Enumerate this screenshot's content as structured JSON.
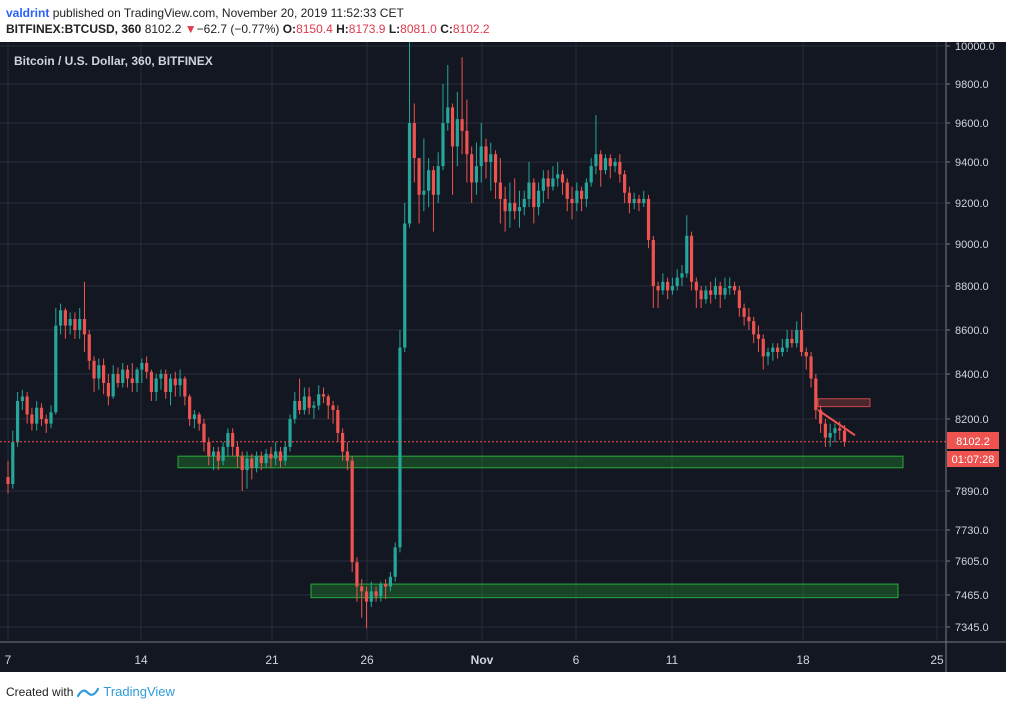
{
  "header": {
    "user": "valdrint",
    "published_text": "published on TradingView.com, November 20, 2019 11:52:33 CET",
    "symbol": "BITFINEX:BTCUSD, 360",
    "last": "8102.2",
    "change_arrow": "▼",
    "change": "−62.7 (−0.77%)",
    "o_label": "O:",
    "o_value": "8150.4",
    "h_label": "H:",
    "h_value": "8173.9",
    "l_label": "L:",
    "l_value": "8081.0",
    "c_label": "C:",
    "c_value": "8102.2"
  },
  "footer": {
    "created_with": "Created with",
    "brand": "TradingView"
  },
  "colors": {
    "background": "#131722",
    "grid": "#2a2e39",
    "up": "#26a69a",
    "down": "#ef5350",
    "zone_fill": "#1e7a2e",
    "zone_stroke": "#2ecc40",
    "price_line": "#ef5350",
    "text": "#d1d4dc"
  },
  "chart_data": {
    "type": "candlestick",
    "title": "Bitcoin / U.S. Dollar, 360, BITFINEX",
    "y_ticks": [
      "10000.0",
      "9800.0",
      "9600.0",
      "9400.0",
      "9200.0",
      "9000.0",
      "8800.0",
      "8600.0",
      "8400.0",
      "8200.0",
      "7890.0",
      "7730.0",
      "7605.0",
      "7465.0",
      "7345.0"
    ],
    "x_ticks": [
      "7",
      "14",
      "21",
      "26",
      "Nov",
      "6",
      "11",
      "18",
      "25"
    ],
    "current_price": "8102.2",
    "countdown": "01:07:28",
    "annotations": [
      {
        "type": "support_zone",
        "low": 7990,
        "high": 8040,
        "from": "Oct 16",
        "to": "Nov 23"
      },
      {
        "type": "support_zone",
        "low": 7455,
        "high": 7510,
        "from": "Oct 23",
        "to": "Nov 23"
      },
      {
        "type": "resistance_zone",
        "low": 8255,
        "high": 8290,
        "from": "Nov 19",
        "to": "Nov 21"
      },
      {
        "type": "trendline",
        "from_price": 8240,
        "to_price": 8130
      }
    ],
    "candles": [
      [
        7950,
        7920,
        8020,
        7880
      ],
      [
        7920,
        8100,
        8150,
        7900
      ],
      [
        8100,
        8280,
        8320,
        8080
      ],
      [
        8280,
        8300,
        8330,
        8240
      ],
      [
        8300,
        8220,
        8320,
        8180
      ],
      [
        8220,
        8180,
        8250,
        8150
      ],
      [
        8180,
        8250,
        8280,
        8150
      ],
      [
        8250,
        8200,
        8270,
        8170
      ],
      [
        8200,
        8180,
        8220,
        8140
      ],
      [
        8180,
        8230,
        8260,
        8160
      ],
      [
        8230,
        8620,
        8700,
        8220
      ],
      [
        8620,
        8690,
        8720,
        8580
      ],
      [
        8690,
        8620,
        8700,
        8560
      ],
      [
        8620,
        8650,
        8680,
        8580
      ],
      [
        8650,
        8600,
        8680,
        8560
      ],
      [
        8600,
        8650,
        8700,
        8560
      ],
      [
        8650,
        8580,
        8820,
        8500
      ],
      [
        8580,
        8460,
        8600,
        8420
      ],
      [
        8460,
        8380,
        8480,
        8320
      ],
      [
        8380,
        8440,
        8470,
        8330
      ],
      [
        8440,
        8360,
        8470,
        8310
      ],
      [
        8360,
        8300,
        8400,
        8260
      ],
      [
        8300,
        8400,
        8440,
        8290
      ],
      [
        8400,
        8360,
        8430,
        8340
      ],
      [
        8360,
        8420,
        8450,
        8340
      ],
      [
        8420,
        8380,
        8440,
        8340
      ],
      [
        8380,
        8360,
        8450,
        8320
      ],
      [
        8360,
        8420,
        8430,
        8320
      ],
      [
        8420,
        8450,
        8470,
        8360
      ],
      [
        8450,
        8410,
        8480,
        8380
      ],
      [
        8410,
        8320,
        8420,
        8280
      ],
      [
        8320,
        8380,
        8400,
        8280
      ],
      [
        8380,
        8400,
        8420,
        8330
      ],
      [
        8400,
        8320,
        8420,
        8290
      ],
      [
        8320,
        8380,
        8400,
        8260
      ],
      [
        8380,
        8350,
        8410,
        8300
      ],
      [
        8350,
        8380,
        8420,
        8300
      ],
      [
        8380,
        8300,
        8390,
        8260
      ],
      [
        8300,
        8200,
        8310,
        8170
      ],
      [
        8200,
        8220,
        8240,
        8160
      ],
      [
        8220,
        8180,
        8230,
        8150
      ],
      [
        8180,
        8100,
        8200,
        8060
      ],
      [
        8100,
        8040,
        8120,
        8000
      ],
      [
        8040,
        8060,
        8080,
        7980
      ],
      [
        8060,
        8020,
        8080,
        7980
      ],
      [
        8020,
        8080,
        8100,
        8000
      ],
      [
        8080,
        8140,
        8160,
        8040
      ],
      [
        8140,
        8080,
        8160,
        8040
      ],
      [
        8080,
        8040,
        8100,
        7990
      ],
      [
        8040,
        7980,
        8060,
        7890
      ],
      [
        7980,
        8030,
        8060,
        7900
      ],
      [
        8030,
        7990,
        8050,
        7940
      ],
      [
        7990,
        8040,
        8060,
        7970
      ],
      [
        8040,
        8010,
        8060,
        7980
      ],
      [
        8010,
        8050,
        8070,
        7990
      ],
      [
        8050,
        8030,
        8080,
        7990
      ],
      [
        8030,
        8060,
        8100,
        8000
      ],
      [
        8060,
        8020,
        8080,
        7990
      ],
      [
        8020,
        8080,
        8100,
        8000
      ],
      [
        8080,
        8200,
        8220,
        8060
      ],
      [
        8200,
        8280,
        8320,
        8180
      ],
      [
        8280,
        8240,
        8380,
        8220
      ],
      [
        8240,
        8300,
        8340,
        8220
      ],
      [
        8300,
        8250,
        8340,
        8220
      ],
      [
        8250,
        8260,
        8280,
        8200
      ],
      [
        8260,
        8310,
        8350,
        8240
      ],
      [
        8310,
        8300,
        8340,
        8270
      ],
      [
        8300,
        8260,
        8310,
        8200
      ],
      [
        8260,
        8240,
        8280,
        8180
      ],
      [
        8240,
        8140,
        8260,
        8100
      ],
      [
        8140,
        8060,
        8160,
        8020
      ],
      [
        8060,
        8020,
        8100,
        7980
      ],
      [
        8020,
        7600,
        8040,
        7560
      ],
      [
        7600,
        7500,
        7620,
        7440
      ],
      [
        7500,
        7480,
        7530,
        7380
      ],
      [
        7480,
        7440,
        7500,
        7340
      ],
      [
        7440,
        7480,
        7520,
        7420
      ],
      [
        7480,
        7460,
        7500,
        7440
      ],
      [
        7460,
        7510,
        7520,
        7440
      ],
      [
        7510,
        7500,
        7530,
        7450
      ],
      [
        7500,
        7540,
        7560,
        7480
      ],
      [
        7540,
        7660,
        7680,
        7520
      ],
      [
        7660,
        8520,
        8600,
        7640
      ],
      [
        8520,
        9100,
        9200,
        8500
      ],
      [
        9100,
        9600,
        10020,
        9080
      ],
      [
        9600,
        9420,
        9700,
        9300
      ],
      [
        9420,
        9240,
        9400,
        9100
      ],
      [
        9240,
        9260,
        9520,
        9160
      ],
      [
        9260,
        9360,
        9420,
        9180
      ],
      [
        9360,
        9240,
        9380,
        9060
      ],
      [
        9240,
        9380,
        9450,
        9200
      ],
      [
        9380,
        9600,
        9800,
        9360
      ],
      [
        9600,
        9680,
        9900,
        9560
      ],
      [
        9680,
        9480,
        9700,
        9240
      ],
      [
        9480,
        9620,
        9760,
        9380
      ],
      [
        9620,
        9560,
        9940,
        9440
      ],
      [
        9560,
        9440,
        9720,
        9300
      ],
      [
        9440,
        9300,
        9480,
        9200
      ],
      [
        9300,
        9380,
        9500,
        9240
      ],
      [
        9380,
        9480,
        9600,
        9300
      ],
      [
        9480,
        9400,
        9520,
        9320
      ],
      [
        9400,
        9440,
        9500,
        9260
      ],
      [
        9440,
        9300,
        9460,
        9220
      ],
      [
        9300,
        9220,
        9420,
        9100
      ],
      [
        9220,
        9160,
        9280,
        9060
      ],
      [
        9160,
        9200,
        9300,
        9080
      ],
      [
        9200,
        9160,
        9320,
        9120
      ],
      [
        9160,
        9180,
        9260,
        9080
      ],
      [
        9180,
        9220,
        9260,
        9140
      ],
      [
        9220,
        9300,
        9400,
        9180
      ],
      [
        9300,
        9180,
        9320,
        9100
      ],
      [
        9180,
        9260,
        9300,
        9140
      ],
      [
        9260,
        9320,
        9360,
        9200
      ],
      [
        9320,
        9280,
        9360,
        9220
      ],
      [
        9280,
        9320,
        9380,
        9260
      ],
      [
        9320,
        9340,
        9400,
        9280
      ],
      [
        9340,
        9300,
        9360,
        9240
      ],
      [
        9300,
        9220,
        9320,
        9160
      ],
      [
        9220,
        9200,
        9280,
        9120
      ],
      [
        9200,
        9260,
        9300,
        9160
      ],
      [
        9260,
        9220,
        9280,
        9160
      ],
      [
        9220,
        9300,
        9320,
        9180
      ],
      [
        9300,
        9380,
        9420,
        9280
      ],
      [
        9380,
        9440,
        9640,
        9340
      ],
      [
        9440,
        9360,
        9460,
        9280
      ],
      [
        9360,
        9420,
        9440,
        9340
      ],
      [
        9420,
        9380,
        9440,
        9320
      ],
      [
        9380,
        9400,
        9420,
        9350
      ],
      [
        9400,
        9340,
        9440,
        9300
      ],
      [
        9340,
        9250,
        9360,
        9200
      ],
      [
        9250,
        9200,
        9280,
        9150
      ],
      [
        9200,
        9220,
        9250,
        9170
      ],
      [
        9220,
        9200,
        9240,
        9160
      ],
      [
        9200,
        9220,
        9260,
        9180
      ],
      [
        9220,
        9020,
        9240,
        8980
      ],
      [
        9020,
        8800,
        9040,
        8700
      ],
      [
        8800,
        8780,
        8820,
        8700
      ],
      [
        8780,
        8820,
        8860,
        8760
      ],
      [
        8820,
        8780,
        8840,
        8740
      ],
      [
        8780,
        8800,
        8840,
        8760
      ],
      [
        8800,
        8840,
        8880,
        8780
      ],
      [
        8840,
        8860,
        8900,
        8800
      ],
      [
        8860,
        9040,
        9140,
        8840
      ],
      [
        9040,
        8820,
        9060,
        8780
      ],
      [
        8820,
        8780,
        8840,
        8700
      ],
      [
        8780,
        8740,
        8800,
        8700
      ],
      [
        8740,
        8780,
        8800,
        8720
      ],
      [
        8780,
        8760,
        8820,
        8720
      ],
      [
        8760,
        8800,
        8840,
        8740
      ],
      [
        8800,
        8760,
        8820,
        8700
      ],
      [
        8760,
        8790,
        8840,
        8740
      ],
      [
        8790,
        8800,
        8840,
        8760
      ],
      [
        8800,
        8780,
        8820,
        8760
      ],
      [
        8780,
        8700,
        8800,
        8660
      ],
      [
        8700,
        8660,
        8720,
        8620
      ],
      [
        8660,
        8640,
        8700,
        8600
      ],
      [
        8640,
        8580,
        8660,
        8540
      ],
      [
        8580,
        8560,
        8620,
        8500
      ],
      [
        8560,
        8480,
        8580,
        8420
      ],
      [
        8480,
        8500,
        8520,
        8440
      ],
      [
        8500,
        8520,
        8540,
        8460
      ],
      [
        8520,
        8500,
        8540,
        8470
      ],
      [
        8500,
        8520,
        8560,
        8480
      ],
      [
        8520,
        8560,
        8600,
        8500
      ],
      [
        8560,
        8540,
        8600,
        8520
      ],
      [
        8540,
        8600,
        8640,
        8520
      ],
      [
        8600,
        8500,
        8680,
        8480
      ],
      [
        8500,
        8480,
        8520,
        8420
      ],
      [
        8480,
        8380,
        8500,
        8340
      ],
      [
        8380,
        8240,
        8400,
        8200
      ],
      [
        8240,
        8180,
        8260,
        8140
      ],
      [
        8180,
        8120,
        8200,
        8080
      ],
      [
        8120,
        8140,
        8180,
        8080
      ],
      [
        8140,
        8160,
        8180,
        8100
      ],
      [
        8160,
        8150,
        8190,
        8110
      ],
      [
        8150,
        8102,
        8174,
        8081
      ]
    ]
  }
}
